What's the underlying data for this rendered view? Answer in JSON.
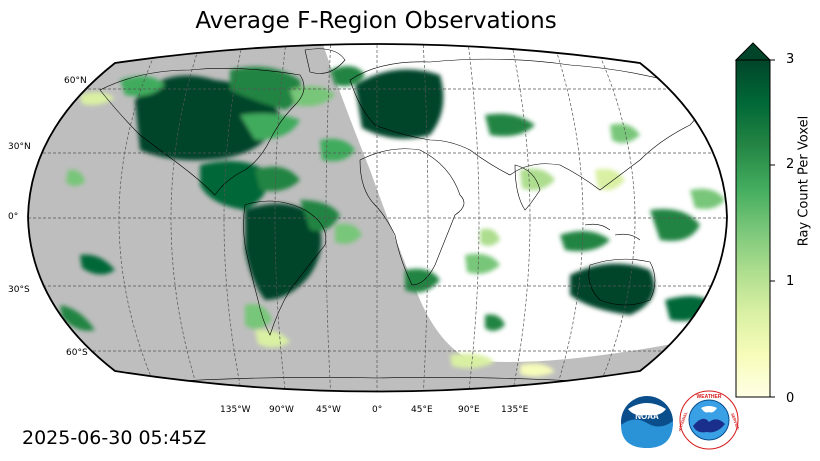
{
  "title": "Average F-Region Observations",
  "timestamp": "2025-06-30 05:45Z",
  "colorbar": {
    "label": "Ray Count Per Voxel",
    "ticks": [
      "0",
      "1",
      "2",
      "3"
    ],
    "min": 0,
    "max": 3,
    "colormap": "YlGn",
    "colors": [
      "#ffffe5",
      "#f7fcb9",
      "#d9f0a3",
      "#addd8e",
      "#78c679",
      "#41ab5d",
      "#238443",
      "#006837",
      "#004529"
    ]
  },
  "map": {
    "projection": "Robinson",
    "lat_labels": [
      "60°N",
      "30°N",
      "0°",
      "30°S",
      "60°S"
    ],
    "lon_labels": [
      "135°W",
      "90°W",
      "45°W",
      "0°",
      "45°E",
      "90°E",
      "135°E"
    ],
    "night_shade_color": "#bebebe",
    "gridlines": "dashed"
  },
  "logos": {
    "noaa": "NOAA",
    "nws": "NATIONAL WEATHER SERVICE"
  }
}
